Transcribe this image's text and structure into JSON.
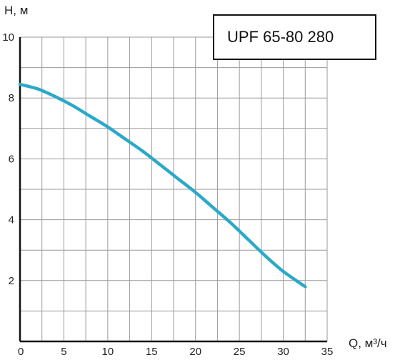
{
  "chart_data": {
    "type": "line",
    "title": "UPF 65-80 280",
    "xlabel": "Q, м³/ч",
    "ylabel": "H, м",
    "xlim": [
      0,
      35
    ],
    "ylim": [
      0,
      10
    ],
    "x_ticks": [
      "0",
      "5",
      "10",
      "15",
      "20",
      "25",
      "30",
      "35"
    ],
    "y_ticks": [
      "2",
      "4",
      "6",
      "8",
      "10"
    ],
    "grid": true,
    "series": [
      {
        "color": "#2aa9c9",
        "x": [
          0,
          2,
          4,
          6,
          8,
          10,
          12,
          14,
          16,
          18,
          20,
          22,
          24,
          26,
          28,
          30,
          32.5
        ],
        "y": [
          8.45,
          8.3,
          8.05,
          7.75,
          7.4,
          7.05,
          6.65,
          6.25,
          5.8,
          5.35,
          4.9,
          4.4,
          3.9,
          3.35,
          2.8,
          2.3,
          1.8
        ]
      }
    ]
  }
}
